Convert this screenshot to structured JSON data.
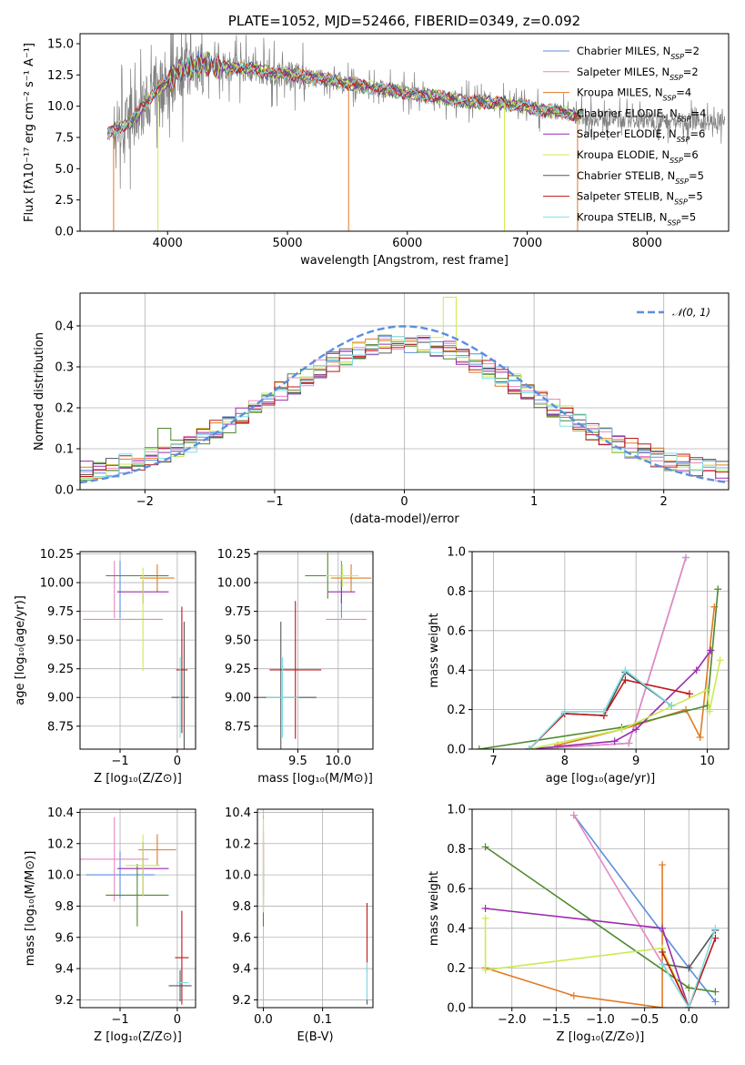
{
  "colors": {
    "Chabrier MILES": "#5b8ee0",
    "Salpeter MILES": "#e887c2",
    "Kroupa MILES": "#e07a24",
    "Chabrier ELODIE": "#4e8a2e",
    "Salpeter ELODIE": "#9b2bb0",
    "Kroupa ELODIE": "#c9ec4f",
    "Chabrier STELIB": "#575757",
    "Salpeter STELIB": "#c01616",
    "Kroupa STELIB": "#7fdfe8"
  },
  "chart_data": [
    {
      "id": "spectrum",
      "type": "line",
      "title": "PLATE=1052, MJD=52466, FIBERID=0349, z=0.092",
      "xlabel": "wavelength [Angstrom, rest frame]",
      "ylabel": "Flux [fλ10⁻¹⁷ erg cm⁻² s⁻¹ A⁻¹]",
      "xlim": [
        3270,
        8680
      ],
      "ylim": [
        0,
        15.8
      ],
      "xticks": [
        4000,
        5000,
        6000,
        7000,
        8000
      ],
      "xtick_labels": [
        "4000",
        "5000",
        "6000",
        "7000",
        "8000"
      ],
      "yticks": [
        0,
        2.5,
        5,
        7.5,
        10,
        12.5,
        15
      ],
      "ytick_labels": [
        "0.0",
        "2.5",
        "5.0",
        "7.5",
        "10.0",
        "12.5",
        "15.0"
      ],
      "grid": false,
      "legend_position": "right",
      "legend": [
        {
          "name": "Chabrier MILES",
          "n": "2"
        },
        {
          "name": "Salpeter MILES",
          "n": "2"
        },
        {
          "name": "Kroupa MILES",
          "n": "4"
        },
        {
          "name": "Chabrier ELODIE",
          "n": "4"
        },
        {
          "name": "Salpeter ELODIE",
          "n": "6"
        },
        {
          "name": "Kroupa ELODIE",
          "n": "6"
        },
        {
          "name": "Chabrier STELIB",
          "n": "5"
        },
        {
          "name": "Salpeter STELIB",
          "n": "5"
        },
        {
          "name": "Kroupa STELIB",
          "n": "5"
        }
      ],
      "continuum": {
        "x": [
          3500,
          3700,
          3900,
          4100,
          4300,
          4500,
          4700,
          4900,
          5100,
          5300,
          5500,
          5700,
          5900,
          6100,
          6300,
          6500,
          6700,
          6900,
          7100,
          7300,
          7500
        ],
        "y": [
          7.8,
          8.8,
          11.2,
          12.8,
          13.4,
          13.1,
          13.0,
          12.6,
          12.4,
          12.2,
          11.8,
          11.5,
          11.2,
          10.9,
          10.7,
          10.4,
          10.3,
          10.1,
          9.7,
          9.5,
          9.1
        ]
      },
      "model_spikes": [
        {
          "series": "Kroupa MILES",
          "x": 3550,
          "y": 0
        },
        {
          "series": "Kroupa ELODIE",
          "x": 3920,
          "y": 0
        },
        {
          "series": "Kroupa MILES",
          "x": 5510,
          "y": 0
        },
        {
          "series": "Kroupa ELODIE",
          "x": 6810,
          "y": 0
        },
        {
          "series": "Kroupa MILES",
          "x": 7420,
          "y": 0
        }
      ]
    },
    {
      "id": "residuals",
      "type": "histogram",
      "xlabel": "(data-model)/error",
      "ylabel": "Normed distribution",
      "xlim": [
        -2.5,
        2.5
      ],
      "ylim": [
        0,
        0.48
      ],
      "xticks": [
        -2,
        -1,
        0,
        1,
        2
      ],
      "xtick_labels": [
        "−2",
        "−1",
        "0",
        "1",
        "2"
      ],
      "yticks": [
        0,
        0.1,
        0.2,
        0.3,
        0.4
      ],
      "ytick_labels": [
        "0.0",
        "0.1",
        "0.2",
        "0.3",
        "0.4"
      ],
      "grid": true,
      "bin_width": 0.1,
      "gaussian": {
        "name": "𝒩(0, 1)",
        "mean": 0,
        "sigma": 1,
        "color": "#5b8ee0"
      },
      "legend_position": "top-right"
    },
    {
      "id": "age-vs-Z",
      "type": "errorbar",
      "xlabel": "Z [log₁₀(Z/Z⊙)]",
      "ylabel": "age  [log₁₀(age/yr)]",
      "xlim": [
        -1.7,
        0.32
      ],
      "ylim": [
        8.55,
        10.27
      ],
      "xticks": [
        -1,
        0
      ],
      "xtick_labels": [
        "−1",
        "0"
      ],
      "yticks": [
        8.75,
        9.0,
        9.25,
        9.5,
        9.75,
        10.0,
        10.25
      ],
      "ytick_labels": [
        "8.75",
        "9.00",
        "9.25",
        "9.50",
        "9.75",
        "10.00",
        "10.25"
      ],
      "grid": true,
      "points": [
        {
          "series": "Chabrier MILES",
          "x": -1.0,
          "xerr": 0.0,
          "y": 9.94,
          "yerr": 0.25
        },
        {
          "series": "Salpeter MILES",
          "x": -1.1,
          "xerr": 0.0,
          "y": 9.94,
          "yerr": 0.25
        },
        {
          "series": "Kroupa MILES",
          "x": -0.35,
          "xerr": 0.3,
          "y": 10.04,
          "yerr": 0.12
        },
        {
          "series": "Chabrier ELODIE",
          "x": -0.7,
          "xerr": 0.55,
          "y": 10.06,
          "yerr": 0.0
        },
        {
          "series": "Salpeter ELODIE",
          "x": -0.6,
          "xerr": 0.45,
          "y": 9.92,
          "yerr": 0.1
        },
        {
          "series": "Kroupa ELODIE",
          "x": -0.6,
          "xerr": 0.3,
          "y": 9.68,
          "yerr": 0.45
        },
        {
          "series": "Chabrier STELIB",
          "x": 0.05,
          "xerr": 0.15,
          "y": 9.0,
          "yerr": 0.0
        },
        {
          "series": "Salpeter STELIB",
          "x": 0.08,
          "xerr": 0.1,
          "y": 9.24,
          "yerr": 0.55
        },
        {
          "series": "Kroupa STELIB",
          "x": 0.05,
          "xerr": 0.0,
          "y": 9.0,
          "yerr": 0.35
        },
        {
          "series": "Salpeter MILES",
          "x": -0.95,
          "xerr": 0.7,
          "y": 9.68,
          "yerr": 0.0
        },
        {
          "series": "Chabrier STELIB",
          "x": 0.12,
          "xerr": 0.0,
          "y": 9.1,
          "yerr": 0.56
        }
      ]
    },
    {
      "id": "age-vs-mass",
      "type": "errorbar",
      "xlabel": "mass [log₁₀(M/M⊙)]",
      "ylabel": "",
      "xlim": [
        9.0,
        10.43
      ],
      "ylim": [
        8.55,
        10.27
      ],
      "xticks": [
        9.5,
        10.0
      ],
      "xtick_labels": [
        "9.5",
        "10.0"
      ],
      "yticks": [
        8.75,
        9.0,
        9.25,
        9.5,
        9.75,
        10.0,
        10.25
      ],
      "ytick_labels": [
        "8.75",
        "9.00",
        "9.25",
        "9.50",
        "9.75",
        "10.00",
        "10.25"
      ],
      "grid": true,
      "points": [
        {
          "series": "Chabrier MILES",
          "x": 10.04,
          "xerr": 0.0,
          "y": 9.94,
          "yerr": 0.25
        },
        {
          "series": "Salpeter MILES",
          "x": 10.1,
          "xerr": 0.25,
          "y": 9.68,
          "yerr": 0.0
        },
        {
          "series": "Kroupa MILES",
          "x": 10.16,
          "xerr": 0.25,
          "y": 10.04,
          "yerr": 0.12
        },
        {
          "series": "Chabrier ELODIE",
          "x": 9.87,
          "xerr": 0.28,
          "y": 10.06,
          "yerr": 0.2
        },
        {
          "series": "Salpeter ELODIE",
          "x": 10.04,
          "xerr": 0.17,
          "y": 9.92,
          "yerr": 0.1
        },
        {
          "series": "Kroupa ELODIE",
          "x": 10.05,
          "xerr": 0.2,
          "y": 10.06,
          "yerr": 0.1
        },
        {
          "series": "Chabrier STELIB",
          "x": 9.29,
          "xerr": 0.44,
          "y": 9.0,
          "yerr": 0.66
        },
        {
          "series": "Salpeter STELIB",
          "x": 9.47,
          "xerr": 0.32,
          "y": 9.24,
          "yerr": 0.6
        },
        {
          "series": "Kroupa STELIB",
          "x": 9.31,
          "xerr": 0.2,
          "y": 9.0,
          "yerr": 0.35
        }
      ]
    },
    {
      "id": "mass-weight-vs-age",
      "type": "line",
      "xlabel": "age  [log₁₀(age/yr)]",
      "ylabel": "mass weight",
      "xlim": [
        6.7,
        10.3
      ],
      "ylim": [
        0,
        1.0
      ],
      "xticks": [
        7,
        8,
        9,
        10
      ],
      "xtick_labels": [
        "7",
        "8",
        "9",
        "10"
      ],
      "yticks": [
        0,
        0.2,
        0.4,
        0.6,
        0.8,
        1.0
      ],
      "ytick_labels": [
        "0.0",
        "0.2",
        "0.4",
        "0.6",
        "0.8",
        "1.0"
      ],
      "grid": true,
      "series": [
        {
          "name": "Chabrier MILES",
          "x": [
            7.5,
            8.9,
            9.7
          ],
          "y": [
            0.0,
            0.03,
            0.97
          ]
        },
        {
          "name": "Salpeter MILES",
          "x": [
            7.5,
            8.9,
            9.7
          ],
          "y": [
            0.0,
            0.03,
            0.97
          ]
        },
        {
          "name": "Kroupa MILES",
          "x": [
            7.9,
            8.8,
            9.7,
            9.9,
            10.1
          ],
          "y": [
            0.02,
            0.1,
            0.2,
            0.06,
            0.72
          ]
        },
        {
          "name": "Chabrier ELODIE",
          "x": [
            6.8,
            8.8,
            10.0,
            10.15
          ],
          "y": [
            0.0,
            0.11,
            0.22,
            0.81
          ]
        },
        {
          "name": "Salpeter ELODIE",
          "x": [
            7.5,
            8.7,
            9.0,
            9.85,
            10.05
          ],
          "y": [
            0.0,
            0.04,
            0.1,
            0.4,
            0.5
          ]
        },
        {
          "name": "Kroupa ELODIE",
          "x": [
            7.5,
            8.8,
            10.0,
            10.03,
            10.18
          ],
          "y": [
            0.0,
            0.1,
            0.3,
            0.19,
            0.45
          ]
        },
        {
          "name": "Chabrier STELIB",
          "x": [
            7.5,
            8.0,
            8.55,
            8.85,
            9.5
          ],
          "y": [
            0.0,
            0.18,
            0.17,
            0.39,
            0.22
          ]
        },
        {
          "name": "Salpeter STELIB",
          "x": [
            7.5,
            8.0,
            8.55,
            8.85,
            9.75
          ],
          "y": [
            0.0,
            0.18,
            0.17,
            0.35,
            0.28
          ]
        },
        {
          "name": "Kroupa STELIB",
          "x": [
            7.5,
            8.0,
            8.55,
            8.85,
            9.5
          ],
          "y": [
            0.0,
            0.19,
            0.19,
            0.4,
            0.22
          ]
        }
      ]
    },
    {
      "id": "mass-vs-Z",
      "type": "errorbar",
      "xlabel": "Z [log₁₀(Z/Z⊙)]",
      "ylabel": "mass [log₁₀(M/M⊙)]",
      "xlim": [
        -1.7,
        0.32
      ],
      "ylim": [
        9.15,
        10.42
      ],
      "xticks": [
        -1,
        0
      ],
      "xtick_labels": [
        "−1",
        "0"
      ],
      "yticks": [
        9.2,
        9.4,
        9.6,
        9.8,
        10.0,
        10.2,
        10.4
      ],
      "ytick_labels": [
        "9.2",
        "9.4",
        "9.6",
        "9.8",
        "10.0",
        "10.2",
        "10.4"
      ],
      "grid": true,
      "points": [
        {
          "series": "Chabrier MILES",
          "x": -1.0,
          "xerr": 0.6,
          "y": 10.0,
          "yerr": 0.15
        },
        {
          "series": "Salpeter MILES",
          "x": -1.1,
          "xerr": 0.6,
          "y": 10.1,
          "yerr": 0.27
        },
        {
          "series": "Kroupa MILES",
          "x": -0.35,
          "xerr": 0.33,
          "y": 10.16,
          "yerr": 0.1
        },
        {
          "series": "Chabrier ELODIE",
          "x": -0.7,
          "xerr": 0.55,
          "y": 9.87,
          "yerr": 0.2
        },
        {
          "series": "Salpeter ELODIE",
          "x": -0.6,
          "xerr": 0.45,
          "y": 10.04,
          "yerr": 0.17
        },
        {
          "series": "Kroupa ELODIE",
          "x": -0.6,
          "xerr": 0.3,
          "y": 10.06,
          "yerr": 0.2
        },
        {
          "series": "Chabrier STELIB",
          "x": 0.05,
          "xerr": 0.2,
          "y": 9.29,
          "yerr": 0.1
        },
        {
          "series": "Salpeter STELIB",
          "x": 0.08,
          "xerr": 0.12,
          "y": 9.47,
          "yerr": 0.3
        },
        {
          "series": "Kroupa STELIB",
          "x": 0.1,
          "xerr": 0.1,
          "y": 9.31,
          "yerr": 0.0
        }
      ]
    },
    {
      "id": "mass-vs-EBV",
      "type": "errorbar",
      "xlabel": "E(B-V)",
      "ylabel": "",
      "xlim": [
        -0.01,
        0.185
      ],
      "ylim": [
        9.15,
        10.42
      ],
      "xticks": [
        0.0,
        0.1
      ],
      "xtick_labels": [
        "0.0",
        "0.1"
      ],
      "yticks": [
        9.2,
        9.4,
        9.6,
        9.8,
        10.0,
        10.2,
        10.4
      ],
      "ytick_labels": [
        "9.2",
        "9.4",
        "9.6",
        "9.8",
        "10.0",
        "10.2",
        "10.4"
      ],
      "grid": true,
      "points": [
        {
          "series": "Chabrier MILES",
          "x": 0.0,
          "xerr": 0.0,
          "y": 10.04,
          "yerr": 0.25
        },
        {
          "series": "Salpeter MILES",
          "x": 0.0,
          "xerr": 0.0,
          "y": 10.1,
          "yerr": 0.27
        },
        {
          "series": "Kroupa MILES",
          "x": 0.0,
          "xerr": 0.0,
          "y": 10.16,
          "yerr": 0.1
        },
        {
          "series": "Chabrier ELODIE",
          "x": 0.0,
          "xerr": 0.0,
          "y": 9.87,
          "yerr": 0.2
        },
        {
          "series": "Salpeter ELODIE",
          "x": 0.0,
          "xerr": 0.0,
          "y": 10.04,
          "yerr": 0.17
        },
        {
          "series": "Kroupa ELODIE",
          "x": 0.0,
          "xerr": 0.0,
          "y": 10.06,
          "yerr": 0.3
        },
        {
          "series": "Chabrier STELIB",
          "x": 0.175,
          "xerr": 0.0,
          "y": 9.29,
          "yerr": 0.12
        },
        {
          "series": "Salpeter STELIB",
          "x": 0.175,
          "xerr": 0.0,
          "y": 9.6,
          "yerr": 0.22
        },
        {
          "series": "Kroupa STELIB",
          "x": 0.175,
          "xerr": 0.0,
          "y": 9.32,
          "yerr": 0.12
        }
      ]
    },
    {
      "id": "mass-weight-vs-Z",
      "type": "line",
      "xlabel": "Z [log₁₀(Z/Z⊙)]",
      "ylabel": "mass weight",
      "xlim": [
        -2.45,
        0.45
      ],
      "ylim": [
        0,
        1.0
      ],
      "xticks": [
        -2.0,
        -1.5,
        -1.0,
        -0.5,
        0.0
      ],
      "xtick_labels": [
        "−2.0",
        "−1.5",
        "−1.0",
        "−0.5",
        "0.0"
      ],
      "yticks": [
        0,
        0.2,
        0.4,
        0.6,
        0.8,
        1.0
      ],
      "ytick_labels": [
        "0.0",
        "0.2",
        "0.4",
        "0.6",
        "0.8",
        "1.0"
      ],
      "grid": true,
      "series": [
        {
          "name": "Chabrier MILES",
          "x": [
            -1.3,
            0.0,
            0.3
          ],
          "y": [
            0.97,
            0.2,
            0.03
          ]
        },
        {
          "name": "Salpeter MILES",
          "x": [
            -1.3,
            0.0
          ],
          "y": [
            0.97,
            0.0
          ]
        },
        {
          "name": "Kroupa MILES",
          "x": [
            -2.3,
            -1.3,
            -0.3,
            -0.3
          ],
          "y": [
            0.2,
            0.06,
            0.0,
            0.72
          ]
        },
        {
          "name": "Chabrier ELODIE",
          "x": [
            -2.3,
            0.0,
            0.3
          ],
          "y": [
            0.81,
            0.1,
            0.08
          ]
        },
        {
          "name": "Salpeter ELODIE",
          "x": [
            -2.3,
            -0.3,
            0.0
          ],
          "y": [
            0.5,
            0.4,
            0.0
          ]
        },
        {
          "name": "Kroupa ELODIE",
          "x": [
            -2.3,
            -2.3,
            -0.3,
            0.0
          ],
          "y": [
            0.45,
            0.19,
            0.3,
            0.0
          ]
        },
        {
          "name": "Chabrier STELIB",
          "x": [
            -0.3,
            0.0,
            0.3
          ],
          "y": [
            0.22,
            0.2,
            0.39
          ]
        },
        {
          "name": "Salpeter STELIB",
          "x": [
            -0.3,
            0.0,
            0.3
          ],
          "y": [
            0.28,
            0.0,
            0.35
          ]
        },
        {
          "name": "Kroupa STELIB",
          "x": [
            -0.3,
            0.0,
            0.3
          ],
          "y": [
            0.22,
            0.0,
            0.4
          ]
        }
      ]
    }
  ]
}
